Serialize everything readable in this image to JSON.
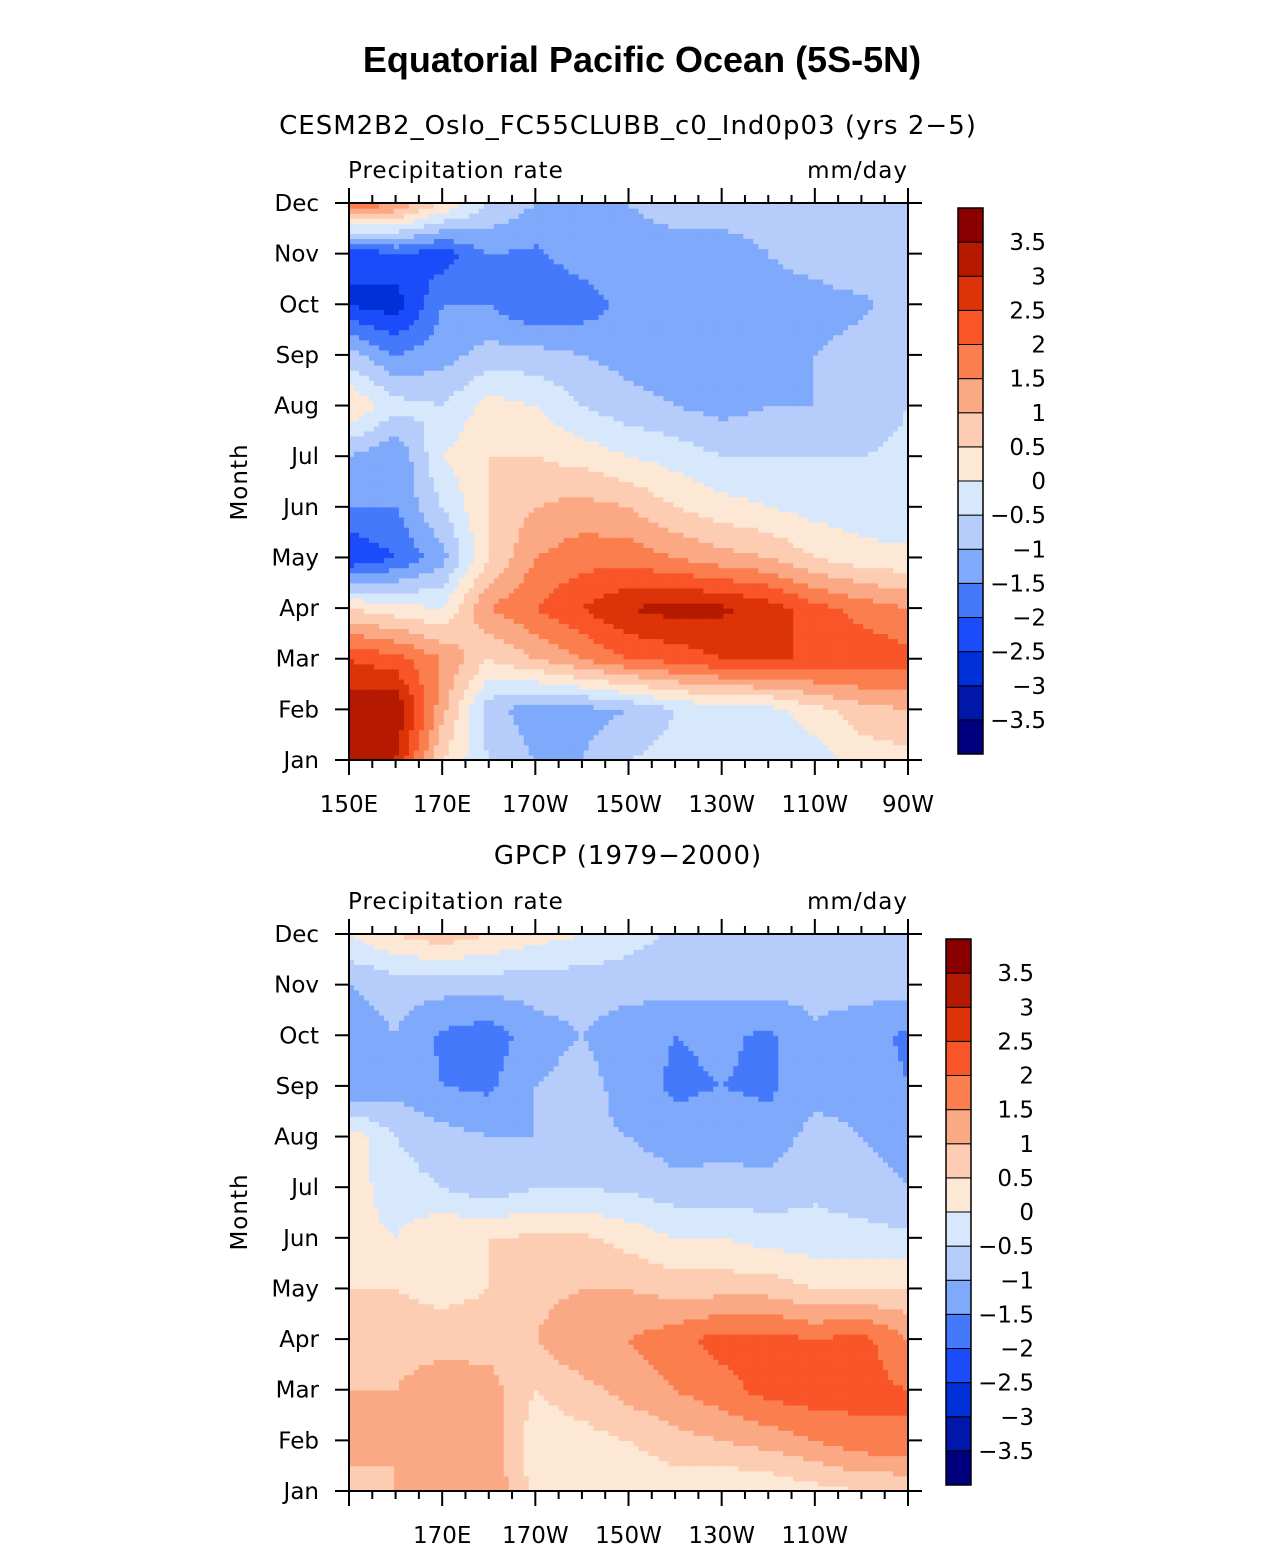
{
  "title": "Equatorial Pacific Ocean (5S-5N)",
  "chart_data": [
    {
      "type": "heatmap",
      "title": "CESM2B2_Oslo_FC55CLUBB_c0_Ind0p03 (yrs 2−5)",
      "left_label": "Precipitation rate",
      "right_label": "mm/day",
      "ylabel": "Month",
      "x_tick_labels": [
        "150E",
        "170E",
        "170W",
        "150W",
        "130W",
        "110W",
        "90W"
      ],
      "y_tick_labels": [
        "Jan",
        "Feb",
        "Mar",
        "Apr",
        "May",
        "Jun",
        "Jul",
        "Aug",
        "Sep",
        "Oct",
        "Nov",
        "Dec"
      ],
      "lon": [
        150,
        160,
        170,
        180,
        190,
        200,
        210,
        220,
        230,
        240,
        250,
        260,
        270
      ],
      "months": [
        "Jan",
        "Feb",
        "Mar",
        "Apr",
        "May",
        "Jun",
        "Jul",
        "Aug",
        "Sep",
        "Oct",
        "Nov",
        "Dec"
      ],
      "z": [
        [
          3.2,
          3.0,
          0.5,
          -0.5,
          -1.0,
          -1.0,
          -0.5,
          -0.3,
          -0.3,
          -0.3,
          -0.3,
          0.2,
          0.3
        ],
        [
          3.3,
          3.5,
          1.2,
          -0.8,
          -1.3,
          -1.2,
          -1.0,
          -0.5,
          -0.3,
          -0.2,
          0.3,
          0.8,
          1.0
        ],
        [
          2.5,
          2.2,
          1.5,
          0.5,
          1.0,
          1.5,
          2.0,
          2.2,
          2.5,
          2.5,
          2.5,
          2.4,
          2.2
        ],
        [
          0.5,
          0.2,
          0.0,
          1.5,
          2.0,
          2.5,
          3.0,
          3.2,
          3.1,
          2.8,
          2.2,
          1.8,
          1.5
        ],
        [
          -2.5,
          -2.0,
          -1.2,
          0.5,
          1.5,
          1.8,
          1.8,
          1.5,
          1.2,
          1.0,
          0.5,
          0.2,
          0.1
        ],
        [
          -1.5,
          -1.5,
          -0.5,
          0.5,
          1.0,
          1.2,
          1.0,
          0.5,
          0.2,
          0.0,
          -0.2,
          -0.3,
          -0.3
        ],
        [
          -1.0,
          -1.5,
          0.0,
          0.5,
          0.5,
          0.3,
          0.0,
          -0.2,
          -0.5,
          -0.5,
          -0.5,
          -0.5,
          -0.4
        ],
        [
          0.5,
          -0.3,
          -0.5,
          0.2,
          0.0,
          -0.5,
          -0.8,
          -1.0,
          -1.2,
          -1.0,
          -1.0,
          -0.8,
          -0.5
        ],
        [
          -0.8,
          -1.5,
          -1.2,
          -0.8,
          -0.8,
          -1.0,
          -1.2,
          -1.3,
          -1.2,
          -1.2,
          -1.0,
          -0.8,
          -0.5
        ],
        [
          -2.5,
          -2.8,
          -1.5,
          -1.5,
          -2.0,
          -1.8,
          -1.3,
          -1.3,
          -1.3,
          -1.2,
          -1.2,
          -1.1,
          -0.8
        ],
        [
          -2.5,
          -2.0,
          -2.3,
          -1.5,
          -1.6,
          -1.2,
          -1.2,
          -1.2,
          -1.2,
          -1.0,
          -0.8,
          -0.6,
          -0.5
        ],
        [
          2.0,
          1.5,
          0.5,
          -0.5,
          -1.0,
          -1.0,
          -1.0,
          -0.8,
          -0.8,
          -0.8,
          -0.6,
          -0.5,
          -0.5
        ]
      ],
      "levels": [
        -3.5,
        -3,
        -2.5,
        -2,
        -1.5,
        -1,
        -0.5,
        0,
        0.5,
        1,
        1.5,
        2,
        2.5,
        3,
        3.5
      ],
      "colorbar_labels": [
        "3.5",
        "3",
        "2.5",
        "2",
        "1.5",
        "1",
        "0.5",
        "0",
        "−0.5",
        "−1",
        "−1.5",
        "−2",
        "−2.5",
        "−3",
        "−3.5"
      ]
    },
    {
      "type": "heatmap",
      "title": "GPCP (1979−2000)",
      "left_label": "Precipitation rate",
      "right_label": "mm/day",
      "ylabel": "Month",
      "x_tick_labels": [
        "170E",
        "170W",
        "150W",
        "130W",
        "110W"
      ],
      "y_tick_labels": [
        "Jan",
        "Feb",
        "Mar",
        "Apr",
        "May",
        "Jun",
        "Jul",
        "Aug",
        "Sep",
        "Oct",
        "Nov",
        "Dec"
      ],
      "lon": [
        150,
        160,
        170,
        180,
        190,
        200,
        210,
        220,
        230,
        240,
        250,
        260,
        270
      ],
      "months": [
        "Jan",
        "Feb",
        "Mar",
        "Apr",
        "May",
        "Jun",
        "Jul",
        "Aug",
        "Sep",
        "Oct",
        "Nov",
        "Dec"
      ],
      "z": [
        [
          0.8,
          1.0,
          1.2,
          1.5,
          0.3,
          0.2,
          0.1,
          0.2,
          0.0,
          0.1,
          0.3,
          0.5,
          0.5
        ],
        [
          1.2,
          1.0,
          1.5,
          1.3,
          0.2,
          0.3,
          0.5,
          0.8,
          1.0,
          1.2,
          1.5,
          1.8,
          2.0
        ],
        [
          1.0,
          1.0,
          1.3,
          1.2,
          0.5,
          0.8,
          1.2,
          1.5,
          1.8,
          2.2,
          2.3,
          2.2,
          2.0
        ],
        [
          0.5,
          0.8,
          0.8,
          0.8,
          1.0,
          1.5,
          1.5,
          1.8,
          2.2,
          2.2,
          2.0,
          2.2,
          1.5
        ],
        [
          0.5,
          0.5,
          0.3,
          0.5,
          0.8,
          1.0,
          1.0,
          0.8,
          0.8,
          0.8,
          0.5,
          0.5,
          0.5
        ],
        [
          0.2,
          0.0,
          0.5,
          0.5,
          0.6,
          0.6,
          0.3,
          0.0,
          0.0,
          -0.2,
          -0.3,
          -0.3,
          -0.4
        ],
        [
          0.3,
          -0.3,
          -0.5,
          -0.8,
          -0.5,
          -0.5,
          -0.6,
          -0.8,
          -0.8,
          -0.8,
          -0.6,
          -0.8,
          -1.0
        ],
        [
          0.3,
          -0.5,
          -0.8,
          -1.0,
          -1.0,
          -0.9,
          -1.0,
          -1.3,
          -1.2,
          -1.3,
          -0.8,
          -1.0,
          -1.2
        ],
        [
          -1.5,
          -1.2,
          -1.5,
          -1.6,
          -1.0,
          -0.8,
          -1.2,
          -1.6,
          -1.5,
          -1.6,
          -1.2,
          -1.2,
          -1.5
        ],
        [
          -1.3,
          -1.0,
          -1.6,
          -1.8,
          -1.2,
          -1.0,
          -1.3,
          -1.5,
          -1.4,
          -1.6,
          -1.1,
          -1.3,
          -1.6
        ],
        [
          -1.0,
          -0.8,
          -0.8,
          -0.8,
          -0.8,
          -0.8,
          -0.8,
          -0.8,
          -0.8,
          -0.8,
          -0.8,
          -0.8,
          -0.8
        ],
        [
          0.0,
          0.5,
          0.8,
          0.5,
          0.2,
          0.0,
          -0.3,
          -0.6,
          -0.6,
          -0.6,
          -0.6,
          -0.6,
          -0.6
        ]
      ],
      "levels": [
        -3.5,
        -3,
        -2.5,
        -2,
        -1.5,
        -1,
        -0.5,
        0,
        0.5,
        1,
        1.5,
        2,
        2.5,
        3,
        3.5
      ],
      "colorbar_labels": [
        "3.5",
        "3",
        "2.5",
        "2",
        "1.5",
        "1",
        "0.5",
        "0",
        "−0.5",
        "−1",
        "−1.5",
        "−2",
        "−2.5",
        "−3",
        "−3.5"
      ]
    }
  ],
  "colors": [
    "#00007f",
    "#0017aa",
    "#0030d8",
    "#1a4cfa",
    "#4479fb",
    "#7fa9fb",
    "#b6cdfb",
    "#d7e8fd",
    "#fde8d6",
    "#fdcdb3",
    "#fba984",
    "#fb7f4e",
    "#f95528",
    "#dd3308",
    "#b51a00",
    "#8a0000"
  ]
}
